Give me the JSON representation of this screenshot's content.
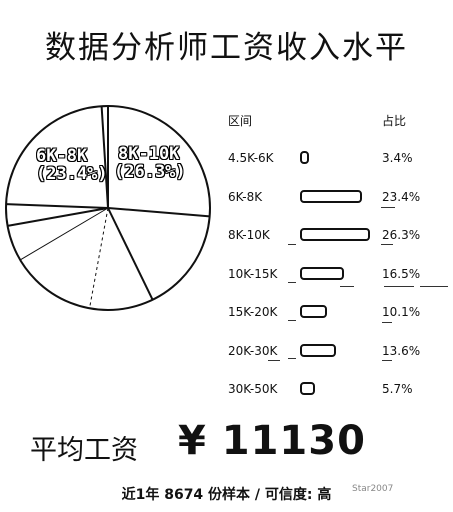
{
  "chart_data": {
    "type": "pie",
    "title": "数据分析师工资收入水平",
    "table_headers": {
      "category": "区间",
      "share": "占比"
    },
    "categories": [
      "4.5K-6K",
      "6K-8K",
      "8K-10K",
      "10K-15K",
      "15K-20K",
      "20K-30K",
      "30K-50K"
    ],
    "shares": [
      "3.4%",
      "23.4%",
      "26.3%",
      "16.5%",
      "10.1%",
      "13.6%",
      "5.7%"
    ],
    "values": [
      3.4,
      23.4,
      26.3,
      16.5,
      10.1,
      13.6,
      5.7
    ],
    "pie_labels": [
      {
        "range": "6K-8K",
        "pct": "(23.4%)"
      },
      {
        "range": "8K-10K",
        "pct": "(26.3%)"
      }
    ],
    "colors": {
      "outline": "#111111",
      "fill": "#ffffff"
    }
  },
  "summary": {
    "avg_label": "平均工资",
    "avg_value": "¥ 11130",
    "footer": "近1年 8674 份样本 / 可信度: 高",
    "watermark": "Star2007"
  }
}
